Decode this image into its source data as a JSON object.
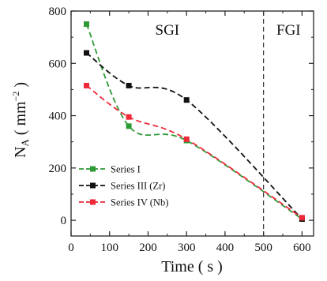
{
  "chart_data": {
    "type": "scatter",
    "xlabel": "Time ( s )",
    "ylabel": "N_A ( mm^-2 )",
    "xlim": [
      0,
      630
    ],
    "ylim": [
      -60,
      800
    ],
    "xticks": [
      0,
      100,
      200,
      300,
      400,
      500,
      600
    ],
    "yticks": [
      0,
      200,
      400,
      600,
      800
    ],
    "grid": false,
    "legend_position": "bottom-left",
    "annotations": [
      {
        "text": "SGI",
        "x": 250,
        "y": 710
      },
      {
        "text": "FGI",
        "x": 565,
        "y": 710
      }
    ],
    "divider_x": 500,
    "series": [
      {
        "name": "Series I",
        "color": "#2e9a36",
        "x": [
          40,
          150,
          300,
          600
        ],
        "y": [
          750,
          360,
          305,
          5
        ]
      },
      {
        "name": "Series III (Zr)",
        "color": "#111111",
        "x": [
          40,
          150,
          300,
          600
        ],
        "y": [
          640,
          515,
          460,
          5
        ]
      },
      {
        "name": "Series IV (Nb)",
        "color": "#ee2a3a",
        "x": [
          40,
          150,
          300,
          600
        ],
        "y": [
          515,
          395,
          310,
          10
        ]
      }
    ]
  }
}
